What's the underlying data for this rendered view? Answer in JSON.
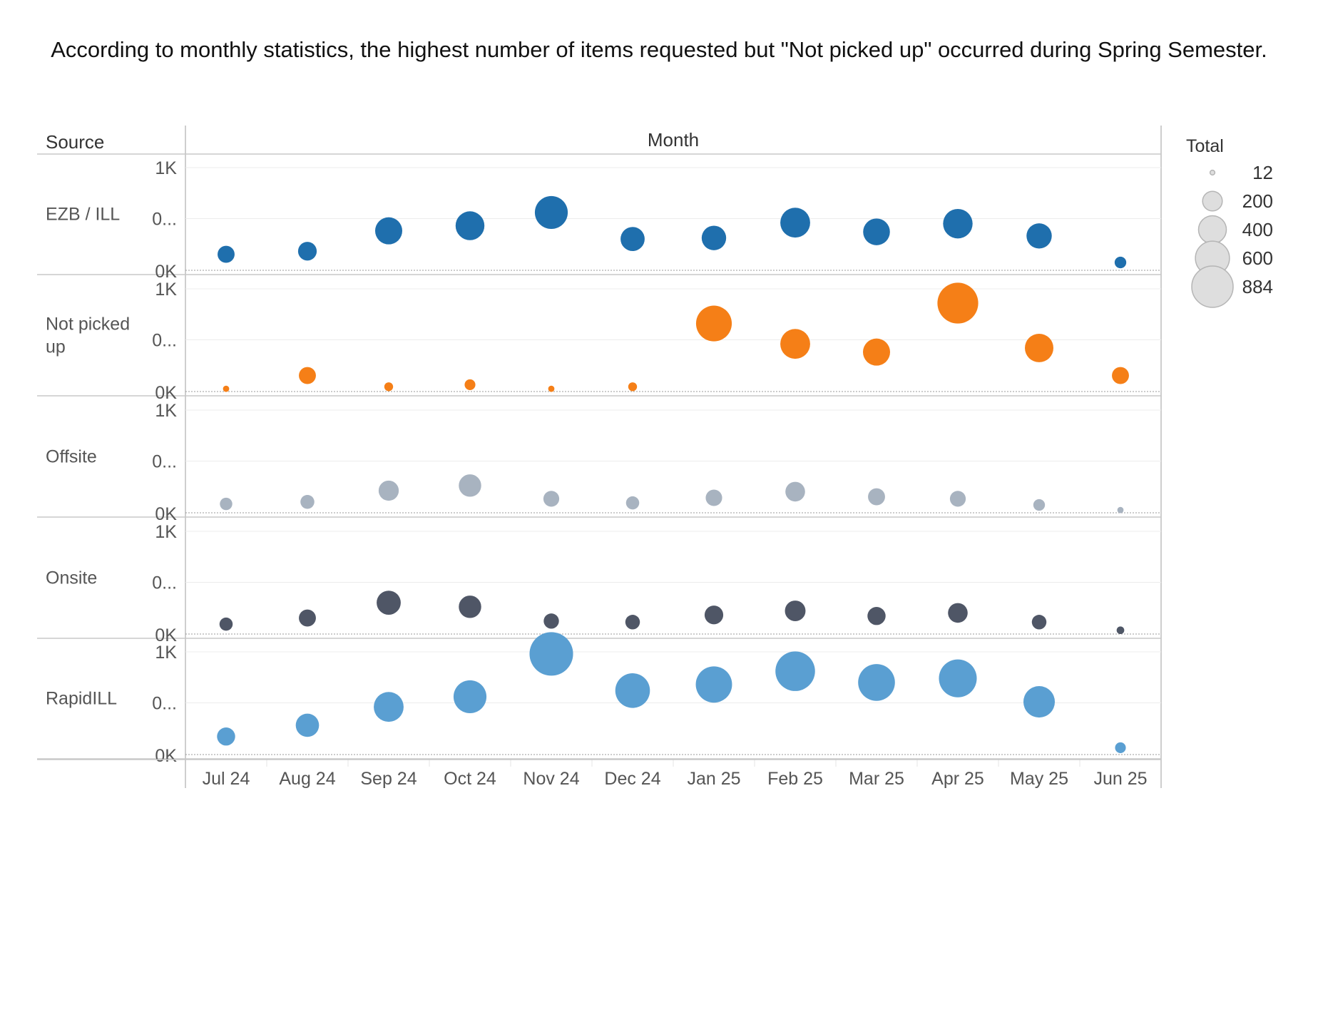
{
  "title": "According to monthly statistics, the highest number of items requested but \"Not picked up\" occurred during Spring Semester.",
  "chart_data": {
    "type": "scatter",
    "row_header": "Source",
    "column_header": "Month",
    "size_legend_title": "Total",
    "size_legend": [
      {
        "label": "12",
        "value": 12
      },
      {
        "label": "200",
        "value": 200
      },
      {
        "label": "400",
        "value": 400
      },
      {
        "label": "600",
        "value": 600
      },
      {
        "label": "884",
        "value": 884
      }
    ],
    "ylim": [
      0,
      1000
    ],
    "y_ticks": [
      "1K",
      "0...",
      "0K"
    ],
    "categories": [
      "Jul 24",
      "Aug 24",
      "Sep 24",
      "Oct 24",
      "Nov 24",
      "Dec 24",
      "Jan 25",
      "Feb 25",
      "Mar 25",
      "Apr 25",
      "May 25",
      "Jun 25"
    ],
    "series": [
      {
        "name": "EZB / ILL",
        "color": "#1f6fad",
        "values": [
          150,
          180,
          380,
          430,
          560,
          300,
          310,
          460,
          370,
          450,
          330,
          70
        ]
      },
      {
        "name": "Not picked up",
        "color": "#f57f17",
        "values": [
          20,
          150,
          40,
          60,
          20,
          40,
          660,
          460,
          380,
          860,
          420,
          150
        ]
      },
      {
        "name": "Offsite",
        "color": "#a8b3c0",
        "values": [
          80,
          100,
          210,
          260,
          130,
          90,
          140,
          200,
          150,
          130,
          70,
          20
        ]
      },
      {
        "name": "Onsite",
        "color": "#4f5666",
        "values": [
          90,
          150,
          300,
          260,
          120,
          110,
          180,
          220,
          170,
          200,
          110,
          30
        ]
      },
      {
        "name": "RapidILL",
        "color": "#5a9fd2",
        "values": [
          170,
          280,
          460,
          560,
          980,
          620,
          680,
          810,
          700,
          740,
          510,
          60
        ]
      }
    ]
  }
}
